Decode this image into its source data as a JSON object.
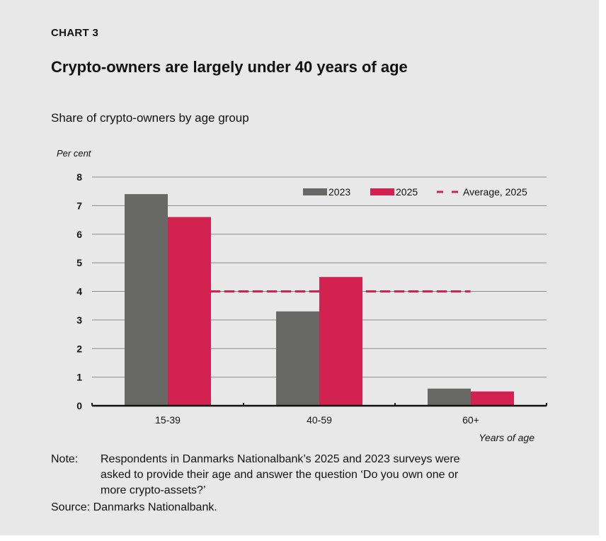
{
  "header": {
    "label": "CHART 3",
    "title": "Crypto-owners are largely under 40 years of age",
    "subtitle": "Share of crypto-owners by age group"
  },
  "chart_data": {
    "type": "bar",
    "ylabel": "Per cent",
    "xlabel": "Years of age",
    "ylim": [
      0,
      8
    ],
    "yticks": [
      "0",
      "1",
      "2",
      "3",
      "4",
      "5",
      "6",
      "7",
      "8"
    ],
    "grid": true,
    "legend": "top-right",
    "categories": [
      "15-39",
      "40-59",
      "60+"
    ],
    "series": [
      {
        "name": "2023",
        "values": [
          7.4,
          3.3,
          0.6
        ],
        "color": "#686966"
      },
      {
        "name": "2025",
        "values": [
          6.6,
          4.5,
          0.5
        ],
        "color": "#d2224f"
      }
    ],
    "reference_line": {
      "name": "Average, 2025",
      "value": 4.0,
      "color": "#d2224f",
      "style": "dashed"
    }
  },
  "footer": {
    "note_label": "Note:",
    "note_lines": [
      "Respondents in Danmarks Nationalbank’s 2025 and 2023 surveys were",
      "asked to provide their age and answer the question ‘Do you own one or",
      "more crypto-assets?’"
    ],
    "source": "Source: Danmarks Nationalbank."
  }
}
